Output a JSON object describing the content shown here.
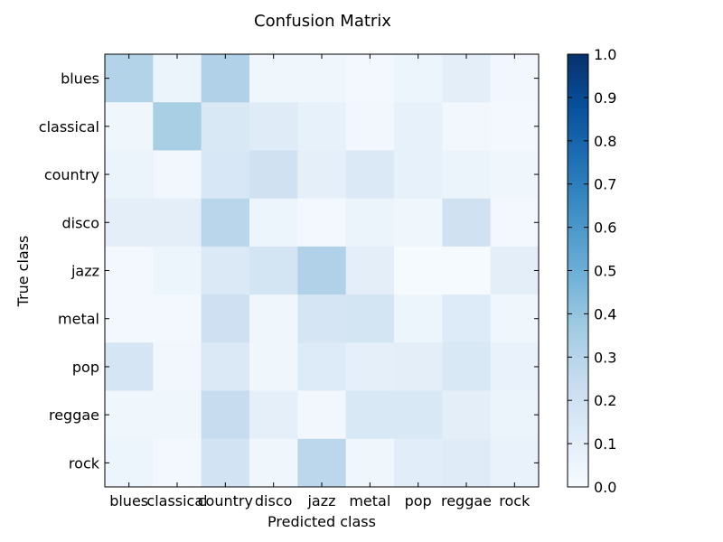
{
  "chart_data": {
    "type": "heatmap",
    "title": "Confusion Matrix",
    "xlabel": "Predicted class",
    "ylabel": "True class",
    "x_categories": [
      "blues",
      "classical",
      "country",
      "disco",
      "jazz",
      "metal",
      "pop",
      "reggae",
      "rock"
    ],
    "y_categories": [
      "blues",
      "classical",
      "country",
      "disco",
      "jazz",
      "metal",
      "pop",
      "reggae",
      "rock"
    ],
    "values": [
      [
        0.31,
        0.06,
        0.32,
        0.04,
        0.04,
        0.02,
        0.05,
        0.1,
        0.03
      ],
      [
        0.04,
        0.34,
        0.15,
        0.12,
        0.08,
        0.03,
        0.08,
        0.03,
        0.02
      ],
      [
        0.06,
        0.03,
        0.16,
        0.2,
        0.09,
        0.14,
        0.08,
        0.06,
        0.04
      ],
      [
        0.1,
        0.1,
        0.29,
        0.05,
        0.02,
        0.06,
        0.04,
        0.2,
        0.02
      ],
      [
        0.02,
        0.05,
        0.14,
        0.18,
        0.32,
        0.1,
        0.01,
        0.01,
        0.1
      ],
      [
        0.02,
        0.02,
        0.21,
        0.04,
        0.17,
        0.18,
        0.05,
        0.13,
        0.04
      ],
      [
        0.17,
        0.03,
        0.14,
        0.04,
        0.13,
        0.09,
        0.1,
        0.15,
        0.07
      ],
      [
        0.04,
        0.04,
        0.24,
        0.09,
        0.03,
        0.15,
        0.15,
        0.1,
        0.06
      ],
      [
        0.05,
        0.02,
        0.19,
        0.04,
        0.28,
        0.04,
        0.11,
        0.12,
        0.07
      ]
    ],
    "colorbar": {
      "range": [
        0.0,
        1.0
      ],
      "ticks": [
        "0.0",
        "0.1",
        "0.2",
        "0.3",
        "0.4",
        "0.5",
        "0.6",
        "0.7",
        "0.8",
        "0.9",
        "1.0"
      ],
      "colormap": "Blues",
      "colors": [
        "#f7fbff",
        "#deebf7",
        "#c6dbef",
        "#9ecae1",
        "#6baed6",
        "#4292c6",
        "#2171b5",
        "#08519c",
        "#08306b"
      ]
    },
    "grid": false,
    "legend": "colorbar-right"
  }
}
